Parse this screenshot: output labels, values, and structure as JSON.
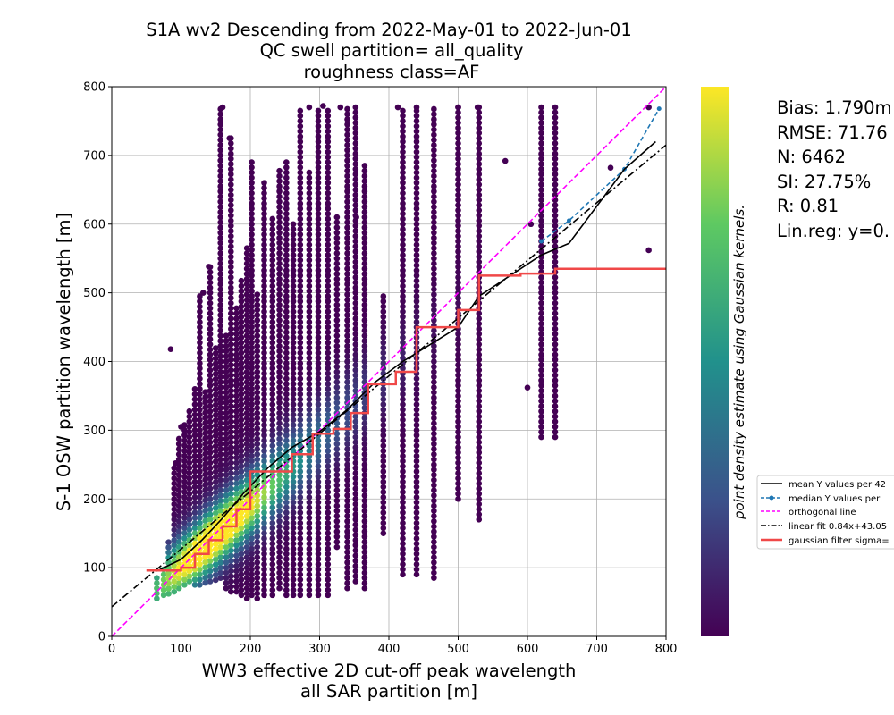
{
  "chart_data": {
    "type": "scatter",
    "title_lines": [
      "S1A wv2 Descending from 2022-May-01 to 2022-Jun-01",
      "QC swell partition= all_quality",
      "roughness class=AF"
    ],
    "xlabel_lines": [
      "WW3 effective 2D cut-off peak wavelength",
      "all SAR partition [m]"
    ],
    "ylabel": "S-1 OSW partition wavelength [m]",
    "xlim": [
      0,
      800
    ],
    "ylim": [
      0,
      800
    ],
    "xticks": [
      0,
      100,
      200,
      300,
      400,
      500,
      600,
      700,
      800
    ],
    "yticks": [
      0,
      100,
      200,
      300,
      400,
      500,
      600,
      700,
      800
    ],
    "grid": true,
    "colorbar_label": "point density estimate using Gaussian kernels.",
    "colormap": [
      "#440154",
      "#3b528b",
      "#21918c",
      "#5ec962",
      "#fde725"
    ],
    "stats_lines": [
      "Bias: 1.790m",
      "RMSE: 71.76",
      "N: 6462",
      "SI: 27.75%",
      "R: 0.81",
      "Lin.reg: y=0."
    ],
    "legend": {
      "placement": "right",
      "entries": [
        {
          "label": "mean Y values per 42",
          "color": "#000000",
          "style": "solid"
        },
        {
          "label": "median Y values per",
          "color": "#1f77b4",
          "style": "dashed-dot-marker"
        },
        {
          "label": "orthogonal line",
          "color": "#ff00ff",
          "style": "dashed"
        },
        {
          "label": "linear fit 0.84x+43.05",
          "color": "#000000",
          "style": "dashdot"
        },
        {
          "label": "gaussian filter sigma=",
          "color": "#f04848",
          "style": "solid-thick"
        }
      ]
    },
    "columns_x": [
      65,
      75,
      82,
      90,
      97,
      105,
      112,
      120,
      127,
      135,
      142,
      150,
      157,
      165,
      172,
      180,
      187,
      195,
      202,
      210,
      220,
      232,
      242,
      252,
      262,
      272,
      285,
      298,
      312,
      325,
      340,
      352,
      365,
      392,
      420,
      440,
      465,
      500,
      530,
      620,
      640
    ],
    "column_ranges": [
      [
        55,
        90
      ],
      [
        60,
        100
      ],
      [
        62,
        140
      ],
      [
        65,
        250
      ],
      [
        70,
        290
      ],
      [
        75,
        310
      ],
      [
        80,
        330
      ],
      [
        75,
        360
      ],
      [
        75,
        500
      ],
      [
        78,
        360
      ],
      [
        80,
        540
      ],
      [
        82,
        420
      ],
      [
        85,
        770
      ],
      [
        70,
        440
      ],
      [
        65,
        725
      ],
      [
        65,
        480
      ],
      [
        60,
        520
      ],
      [
        55,
        570
      ],
      [
        60,
        690
      ],
      [
        55,
        500
      ],
      [
        60,
        660
      ],
      [
        60,
        610
      ],
      [
        70,
        680
      ],
      [
        60,
        695
      ],
      [
        60,
        600
      ],
      [
        60,
        770
      ],
      [
        60,
        680
      ],
      [
        60,
        770
      ],
      [
        60,
        770
      ],
      [
        130,
        610
      ],
      [
        70,
        770
      ],
      [
        80,
        770
      ],
      [
        70,
        690
      ],
      [
        150,
        500
      ],
      [
        90,
        770
      ],
      [
        90,
        770
      ],
      [
        85,
        770
      ],
      [
        200,
        770
      ],
      [
        170,
        770
      ],
      [
        290,
        770
      ],
      [
        290,
        770
      ]
    ],
    "outliers": [
      [
        85,
        418
      ],
      [
        92,
        252
      ],
      [
        100,
        305
      ],
      [
        132,
        500
      ],
      [
        140,
        538
      ],
      [
        160,
        770
      ],
      [
        170,
        725
      ],
      [
        285,
        770
      ],
      [
        305,
        772
      ],
      [
        330,
        770
      ],
      [
        353,
        610
      ],
      [
        413,
        770
      ],
      [
        440,
        770
      ],
      [
        500,
        770
      ],
      [
        528,
        770
      ],
      [
        568,
        692
      ],
      [
        600,
        362
      ],
      [
        605,
        600
      ],
      [
        720,
        682
      ],
      [
        775,
        770
      ],
      [
        775,
        562
      ]
    ],
    "series": [
      {
        "name": "mean Y values per 42",
        "x": [
          65,
          100,
          130,
          160,
          190,
          225,
          260,
          300,
          340,
          380,
          420,
          460,
          500,
          530,
          620,
          660,
          740,
          785
        ],
        "y": [
          95,
          112,
          140,
          172,
          208,
          245,
          275,
          298,
          330,
          370,
          400,
          425,
          450,
          495,
          555,
          572,
          680,
          720
        ]
      },
      {
        "name": "median Y values per",
        "x": [
          620,
          660,
          740,
          790
        ],
        "y": [
          575,
          605,
          680,
          768
        ]
      },
      {
        "name": "orthogonal line",
        "x": [
          0,
          800
        ],
        "y": [
          0,
          800
        ]
      },
      {
        "name": "linear fit 0.84x+43.05",
        "x": [
          0,
          800
        ],
        "y": [
          43.05,
          715.05
        ]
      },
      {
        "name": "gaussian filter sigma=",
        "x": [
          50,
          100,
          120,
          140,
          160,
          180,
          200,
          230,
          260,
          290,
          320,
          345,
          370,
          410,
          440,
          475,
          500,
          530,
          590,
          640,
          800
        ],
        "y": [
          96,
          100,
          120,
          140,
          160,
          185,
          240,
          240,
          265,
          295,
          302,
          325,
          367,
          385,
          450,
          450,
          475,
          525,
          528,
          535,
          535
        ]
      }
    ]
  }
}
